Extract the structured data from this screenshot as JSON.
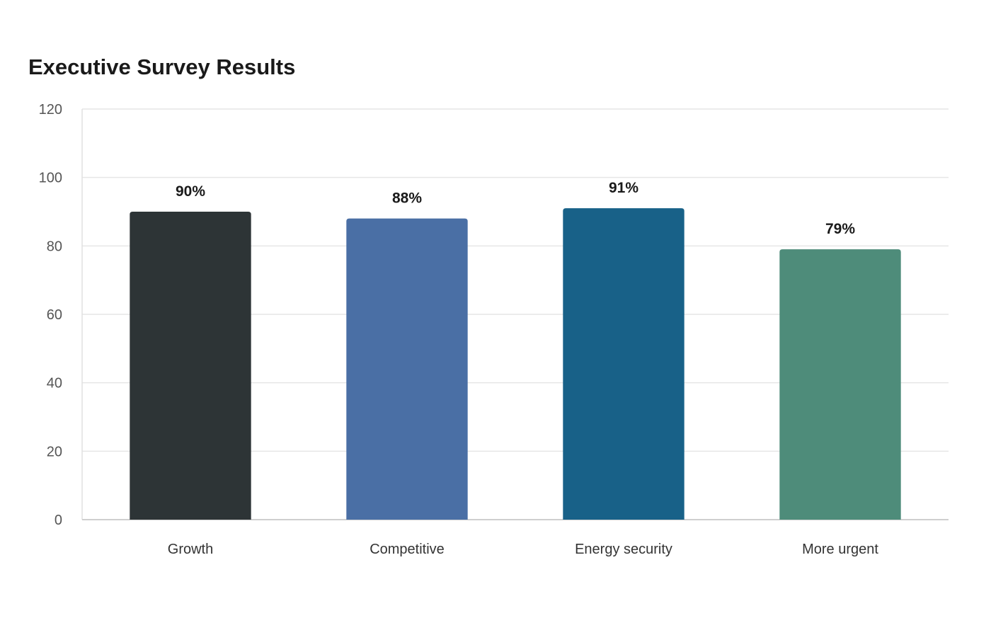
{
  "chart_data": {
    "type": "bar",
    "title": "Executive Survey Results",
    "xlabel": "",
    "ylabel": "",
    "categories": [
      "Growth",
      "Competitive",
      "Energy security",
      "More urgent"
    ],
    "values": [
      90,
      88,
      91,
      79
    ],
    "data_labels": [
      "90%",
      "88%",
      "91%",
      "79%"
    ],
    "colors": [
      "#2d3436",
      "#4a6fa5",
      "#186188",
      "#4e8c7a"
    ],
    "ylim": [
      0,
      120
    ],
    "yticks": [
      0,
      20,
      40,
      60,
      80,
      100,
      120
    ],
    "grid": true,
    "legend": "none"
  }
}
